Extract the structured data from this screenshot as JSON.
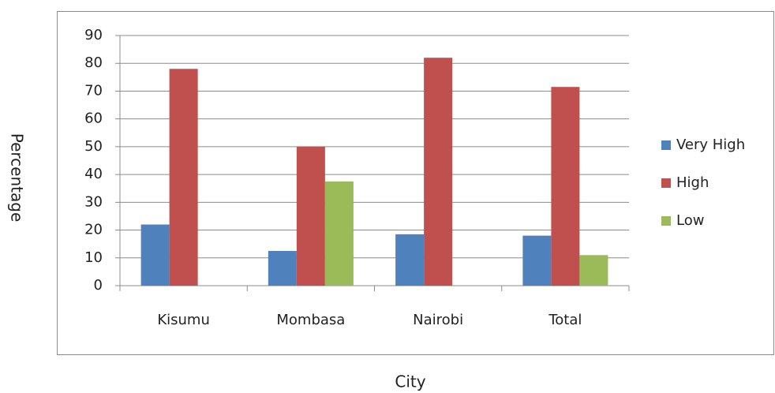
{
  "chart_data": {
    "type": "bar",
    "x_label": "City",
    "y_label": "Percentage",
    "categories": [
      "Kisumu",
      "Mombasa",
      "Nairobi",
      "Total"
    ],
    "series": [
      {
        "name": "Very High",
        "color": "#4f81bd",
        "values": [
          22,
          12.5,
          18.5,
          18
        ]
      },
      {
        "name": "High",
        "color": "#c0504d",
        "values": [
          78,
          50,
          82,
          71.5
        ]
      },
      {
        "name": "Low",
        "color": "#9bbb59",
        "values": [
          0,
          37.5,
          0,
          11
        ]
      }
    ],
    "ylim": [
      0,
      90
    ],
    "yticks": [
      0,
      10,
      20,
      30,
      40,
      50,
      60,
      70,
      80,
      90
    ],
    "grid": true,
    "legend": "right"
  }
}
